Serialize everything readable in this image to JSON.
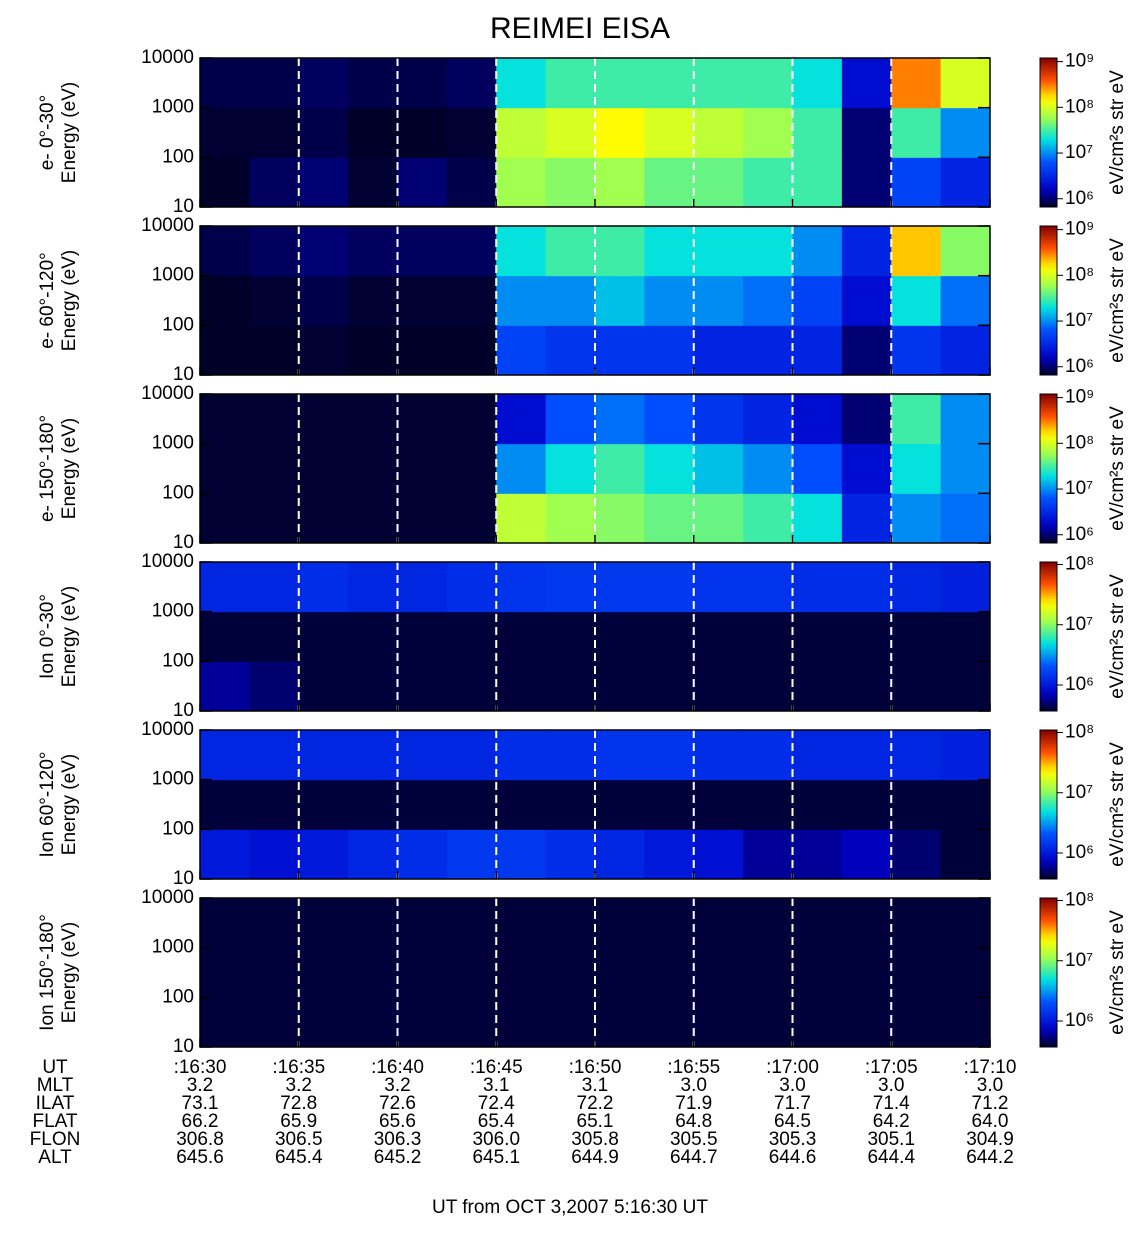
{
  "title": "REIMEI EISA",
  "footer": "UT from OCT  3,2007   5:16:30 UT",
  "chart_data": [
    {
      "type": "heatmap",
      "ylabel": [
        "e- 0°-30°",
        "Energy (eV)"
      ],
      "ylim": [
        10,
        10000
      ],
      "ylog": true,
      "yticks": [
        10,
        100,
        1000,
        10000
      ],
      "zlabel": "eV/cm²s str eV",
      "zlog": true,
      "zlim": [
        660000,
        1200000000
      ],
      "zticks": [
        {
          "value": 1000000,
          "label": "10⁶"
        },
        {
          "value": 10000000,
          "label": "10⁷"
        },
        {
          "value": 100000000,
          "label": "10⁸"
        },
        {
          "value": 1000000000,
          "label": "10⁹"
        }
      ],
      "z": [
        [
          600000.0,
          900000.0,
          1000000.0,
          700000.0,
          1000000.0,
          800000.0,
          60000000.0,
          50000000.0,
          60000000.0,
          40000000.0,
          40000000.0,
          30000000.0,
          30000000.0,
          1000000.0,
          5000000.0,
          3000000.0
        ],
        [
          700000.0,
          700000.0,
          800000.0,
          600000.0,
          600000.0,
          700000.0,
          80000000.0,
          100000000.0,
          150000000.0,
          100000000.0,
          80000000.0,
          60000000.0,
          30000000.0,
          1000000.0,
          30000000.0,
          10000000.0
        ],
        [
          800000.0,
          800000.0,
          900000.0,
          800000.0,
          800000.0,
          900000.0,
          20000000.0,
          30000000.0,
          30000000.0,
          30000000.0,
          30000000.0,
          30000000.0,
          20000000.0,
          2000000.0,
          300000000.0,
          100000000.0
        ]
      ]
    },
    {
      "type": "heatmap",
      "ylabel": [
        "e- 60°-120°",
        "Energy (eV)"
      ],
      "ylim": [
        10,
        10000
      ],
      "ylog": true,
      "yticks": [
        10,
        100,
        1000,
        10000
      ],
      "zlabel": "eV/cm²s str eV",
      "zlog": true,
      "zlim": [
        660000,
        1200000000
      ],
      "zticks": [
        {
          "value": 1000000,
          "label": "10⁶"
        },
        {
          "value": 10000000,
          "label": "10⁷"
        },
        {
          "value": 100000000,
          "label": "10⁸"
        },
        {
          "value": 1000000000,
          "label": "10⁹"
        }
      ],
      "z": [
        [
          600000.0,
          600000.0,
          700000.0,
          600000.0,
          600000.0,
          600000.0,
          5000000.0,
          4000000.0,
          4000000.0,
          4000000.0,
          3000000.0,
          3000000.0,
          3000000.0,
          1000000.0,
          4000000.0,
          3000000.0
        ],
        [
          600000.0,
          700000.0,
          800000.0,
          700000.0,
          700000.0,
          700000.0,
          10000000.0,
          10000000.0,
          15000000.0,
          10000000.0,
          10000000.0,
          8000000.0,
          5000000.0,
          2000000.0,
          20000000.0,
          8000000.0
        ],
        [
          800000.0,
          900000.0,
          1000000.0,
          900000.0,
          900000.0,
          900000.0,
          20000000.0,
          30000000.0,
          30000000.0,
          20000000.0,
          20000000.0,
          20000000.0,
          10000000.0,
          3000000.0,
          200000000.0,
          50000000.0
        ]
      ]
    },
    {
      "type": "heatmap",
      "ylabel": [
        "e- 150°-180°",
        "Energy (eV)"
      ],
      "ylim": [
        10,
        10000
      ],
      "ylog": true,
      "yticks": [
        10,
        100,
        1000,
        10000
      ],
      "zlabel": "eV/cm²s str eV",
      "zlog": true,
      "zlim": [
        660000,
        1200000000
      ],
      "zticks": [
        {
          "value": 1000000,
          "label": "10⁶"
        },
        {
          "value": 10000000,
          "label": "10⁷"
        },
        {
          "value": 100000000,
          "label": "10⁸"
        },
        {
          "value": 1000000000,
          "label": "10⁹"
        }
      ],
      "z": [
        [
          700000.0,
          700000.0,
          700000.0,
          700000.0,
          700000.0,
          700000.0,
          80000000.0,
          60000000.0,
          50000000.0,
          40000000.0,
          40000000.0,
          30000000.0,
          20000000.0,
          3000000.0,
          10000000.0,
          8000000.0
        ],
        [
          700000.0,
          700000.0,
          700000.0,
          700000.0,
          700000.0,
          700000.0,
          10000000.0,
          20000000.0,
          30000000.0,
          20000000.0,
          15000000.0,
          10000000.0,
          6000000.0,
          2000000.0,
          20000000.0,
          10000000.0
        ],
        [
          700000.0,
          700000.0,
          700000.0,
          700000.0,
          700000.0,
          700000.0,
          2000000.0,
          6000000.0,
          8000000.0,
          6000000.0,
          4000000.0,
          3000000.0,
          2000000.0,
          1000000.0,
          30000000.0,
          10000000.0
        ]
      ]
    },
    {
      "type": "heatmap",
      "ylabel": [
        "Ion 0°-30°",
        "Energy (eV)"
      ],
      "ylim": [
        10,
        10000
      ],
      "ylog": true,
      "yticks": [
        10,
        100,
        1000,
        10000
      ],
      "zlabel": "eV/cm²s str eV",
      "zlog": true,
      "zlim": [
        370000,
        110000000
      ],
      "zticks": [
        {
          "value": 1000000,
          "label": "10⁶"
        },
        {
          "value": 10000000,
          "label": "10⁷"
        },
        {
          "value": 100000000,
          "label": "10⁸"
        }
      ],
      "z": [
        [
          600000.0,
          500000.0,
          400000.0,
          400000.0,
          400000.0,
          400000.0,
          400000.0,
          400000.0,
          400000.0,
          400000.0,
          400000.0,
          400000.0,
          400000.0,
          400000.0,
          400000.0,
          400000.0
        ],
        [
          400000.0,
          400000.0,
          400000.0,
          400000.0,
          400000.0,
          400000.0,
          400000.0,
          400000.0,
          400000.0,
          400000.0,
          400000.0,
          400000.0,
          400000.0,
          400000.0,
          400000.0,
          400000.0
        ],
        [
          1200000.0,
          1200000.0,
          1300000.0,
          1200000.0,
          1200000.0,
          1300000.0,
          1400000.0,
          1500000.0,
          1500000.0,
          1500000.0,
          1400000.0,
          1400000.0,
          1300000.0,
          1300000.0,
          1200000.0,
          1100000.0
        ]
      ]
    },
    {
      "type": "heatmap",
      "ylabel": [
        "Ion 60°-120°",
        "Energy (eV)"
      ],
      "ylim": [
        10,
        10000
      ],
      "ylog": true,
      "yticks": [
        10,
        100,
        1000,
        10000
      ],
      "zlabel": "eV/cm²s str eV",
      "zlog": true,
      "zlim": [
        370000,
        110000000
      ],
      "zticks": [
        {
          "value": 1000000,
          "label": "10⁶"
        },
        {
          "value": 10000000,
          "label": "10⁷"
        },
        {
          "value": 100000000,
          "label": "10⁸"
        }
      ],
      "z": [
        [
          1000000.0,
          900000.0,
          1000000.0,
          1200000.0,
          1300000.0,
          1500000.0,
          1500000.0,
          1300000.0,
          1200000.0,
          1000000.0,
          900000.0,
          600000.0,
          600000.0,
          700000.0,
          500000.0,
          400000.0
        ],
        [
          400000.0,
          400000.0,
          400000.0,
          400000.0,
          400000.0,
          400000.0,
          400000.0,
          400000.0,
          400000.0,
          400000.0,
          400000.0,
          400000.0,
          400000.0,
          400000.0,
          400000.0,
          400000.0
        ],
        [
          1200000.0,
          1200000.0,
          1200000.0,
          1200000.0,
          1200000.0,
          1200000.0,
          1300000.0,
          1300000.0,
          1400000.0,
          1400000.0,
          1300000.0,
          1300000.0,
          1200000.0,
          1200000.0,
          1200000.0,
          1100000.0
        ]
      ]
    },
    {
      "type": "heatmap",
      "ylabel": [
        "Ion 150°-180°",
        "Energy (eV)"
      ],
      "ylim": [
        10,
        10000
      ],
      "ylog": true,
      "yticks": [
        10,
        100,
        1000,
        10000
      ],
      "zlabel": "eV/cm²s str eV",
      "zlog": true,
      "zlim": [
        370000,
        110000000
      ],
      "zticks": [
        {
          "value": 1000000,
          "label": "10⁶"
        },
        {
          "value": 10000000,
          "label": "10⁷"
        },
        {
          "value": 100000000,
          "label": "10⁸"
        }
      ],
      "z": [
        [
          400000.0,
          400000.0,
          400000.0,
          400000.0,
          400000.0,
          400000.0,
          400000.0,
          400000.0,
          400000.0,
          400000.0,
          400000.0,
          400000.0,
          400000.0,
          400000.0,
          400000.0,
          400000.0
        ],
        [
          400000.0,
          400000.0,
          400000.0,
          400000.0,
          400000.0,
          400000.0,
          400000.0,
          400000.0,
          400000.0,
          400000.0,
          400000.0,
          400000.0,
          400000.0,
          400000.0,
          400000.0,
          400000.0
        ],
        [
          400000.0,
          400000.0,
          400000.0,
          400000.0,
          400000.0,
          400000.0,
          400000.0,
          400000.0,
          400000.0,
          400000.0,
          400000.0,
          400000.0,
          400000.0,
          400000.0,
          400000.0,
          400000.0
        ]
      ]
    }
  ],
  "ephemeris": {
    "rows": [
      {
        "name": "UT",
        "values": [
          ":16:30",
          ":16:35",
          ":16:40",
          ":16:45",
          ":16:50",
          ":16:55",
          ":17:00",
          ":17:05",
          ":17:10"
        ]
      },
      {
        "name": "MLT",
        "values": [
          "3.2",
          "3.2",
          "3.2",
          "3.1",
          "3.1",
          "3.0",
          "3.0",
          "3.0",
          "3.0"
        ]
      },
      {
        "name": "ILAT",
        "values": [
          "73.1",
          "72.8",
          "72.6",
          "72.4",
          "72.2",
          "71.9",
          "71.7",
          "71.4",
          "71.2"
        ]
      },
      {
        "name": "FLAT",
        "values": [
          "66.2",
          "65.9",
          "65.6",
          "65.4",
          "65.1",
          "64.8",
          "64.5",
          "64.2",
          "64.0"
        ]
      },
      {
        "name": "FLON",
        "values": [
          "306.8",
          "306.5",
          "306.3",
          "306.0",
          "305.8",
          "305.5",
          "305.3",
          "305.1",
          "304.9"
        ]
      },
      {
        "name": "ALT",
        "values": [
          "645.6",
          "645.4",
          "645.2",
          "645.1",
          "644.9",
          "644.7",
          "644.6",
          "644.4",
          "644.2"
        ]
      }
    ]
  }
}
